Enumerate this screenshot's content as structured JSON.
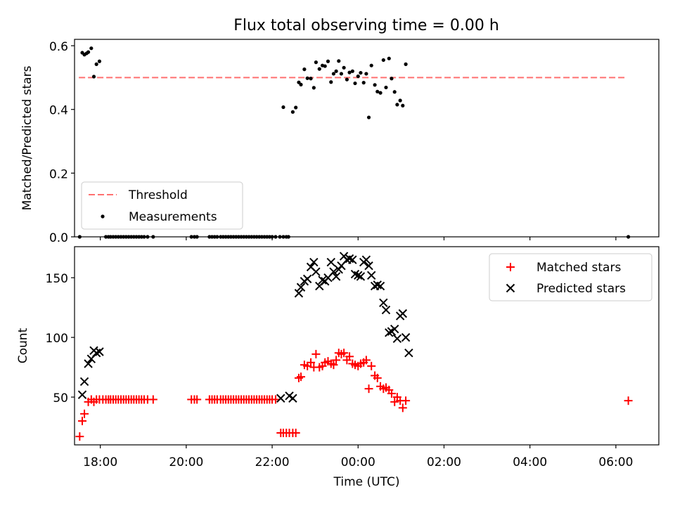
{
  "title": "Flux total observing time = 0.00 h",
  "chart_data": [
    {
      "type": "scatter",
      "ylabel": "Matched/Predicted stars",
      "xlim": [
        -6.6,
        7.0
      ],
      "ylim": [
        0,
        0.62
      ],
      "yticks": [
        "0.0",
        "0.2",
        "0.4",
        "0.6"
      ],
      "grid": false,
      "legend_position": "lower-left",
      "threshold": {
        "name": "Threshold",
        "value": 0.5,
        "x": [
          -6.5,
          6.2
        ],
        "color": "#ff7070",
        "style": "dashed"
      },
      "series": [
        {
          "name": "Measurements",
          "color": "#000000",
          "points": [
            [
              -6.48,
              0.0
            ],
            [
              -6.42,
              0.578
            ],
            [
              -6.37,
              0.572
            ],
            [
              -6.32,
              0.576
            ],
            [
              -6.28,
              0.58
            ],
            [
              -6.21,
              0.592
            ],
            [
              -6.15,
              0.503
            ],
            [
              -6.09,
              0.542
            ],
            [
              -6.02,
              0.551
            ],
            [
              -5.87,
              0.0
            ],
            [
              -5.81,
              0.0
            ],
            [
              -5.76,
              0.0
            ],
            [
              -5.7,
              0.0
            ],
            [
              -5.64,
              0.0
            ],
            [
              -5.58,
              0.0
            ],
            [
              -5.52,
              0.0
            ],
            [
              -5.46,
              0.0
            ],
            [
              -5.4,
              0.0
            ],
            [
              -5.34,
              0.0
            ],
            [
              -5.28,
              0.0
            ],
            [
              -5.22,
              0.0
            ],
            [
              -5.16,
              0.0
            ],
            [
              -5.1,
              0.0
            ],
            [
              -5.04,
              0.0
            ],
            [
              -4.98,
              0.0
            ],
            [
              -4.9,
              0.0
            ],
            [
              -4.77,
              0.0
            ],
            [
              -3.88,
              0.0
            ],
            [
              -3.81,
              0.0
            ],
            [
              -3.75,
              0.0
            ],
            [
              -3.46,
              0.0
            ],
            [
              -3.4,
              0.0
            ],
            [
              -3.34,
              0.0
            ],
            [
              -3.28,
              0.0
            ],
            [
              -3.2,
              0.0
            ],
            [
              -3.14,
              0.0
            ],
            [
              -3.08,
              0.0
            ],
            [
              -3.02,
              0.0
            ],
            [
              -2.96,
              0.0
            ],
            [
              -2.9,
              0.0
            ],
            [
              -2.84,
              0.0
            ],
            [
              -2.78,
              0.0
            ],
            [
              -2.72,
              0.0
            ],
            [
              -2.66,
              0.0
            ],
            [
              -2.6,
              0.0
            ],
            [
              -2.54,
              0.0
            ],
            [
              -2.48,
              0.0
            ],
            [
              -2.42,
              0.0
            ],
            [
              -2.36,
              0.0
            ],
            [
              -2.3,
              0.0
            ],
            [
              -2.24,
              0.0
            ],
            [
              -2.18,
              0.0
            ],
            [
              -2.12,
              0.0
            ],
            [
              -2.06,
              0.0
            ],
            [
              -2.0,
              0.0
            ],
            [
              -1.92,
              0.0
            ],
            [
              -1.82,
              0.0
            ],
            [
              -1.74,
              0.0
            ],
            [
              -1.67,
              0.0
            ],
            [
              -1.62,
              0.0
            ],
            [
              -1.74,
              0.407
            ],
            [
              -1.52,
              0.392
            ],
            [
              -1.45,
              0.406
            ],
            [
              -1.38,
              0.485
            ],
            [
              -1.33,
              0.478
            ],
            [
              -1.25,
              0.526
            ],
            [
              -1.18,
              0.498
            ],
            [
              -1.1,
              0.497
            ],
            [
              -1.03,
              0.468
            ],
            [
              -0.98,
              0.548
            ],
            [
              -0.9,
              0.527
            ],
            [
              -0.83,
              0.538
            ],
            [
              -0.77,
              0.536
            ],
            [
              -0.7,
              0.551
            ],
            [
              -0.63,
              0.486
            ],
            [
              -0.57,
              0.512
            ],
            [
              -0.51,
              0.52
            ],
            [
              -0.45,
              0.552
            ],
            [
              -0.39,
              0.512
            ],
            [
              -0.33,
              0.531
            ],
            [
              -0.26,
              0.494
            ],
            [
              -0.2,
              0.516
            ],
            [
              -0.13,
              0.52
            ],
            [
              -0.07,
              0.482
            ],
            [
              0.0,
              0.504
            ],
            [
              0.06,
              0.515
            ],
            [
              0.13,
              0.484
            ],
            [
              0.19,
              0.512
            ],
            [
              0.25,
              0.375
            ],
            [
              0.31,
              0.538
            ],
            [
              0.39,
              0.477
            ],
            [
              0.45,
              0.456
            ],
            [
              0.52,
              0.452
            ],
            [
              0.59,
              0.555
            ],
            [
              0.65,
              0.469
            ],
            [
              0.72,
              0.56
            ],
            [
              0.78,
              0.497
            ],
            [
              0.85,
              0.455
            ],
            [
              0.91,
              0.415
            ],
            [
              0.98,
              0.428
            ],
            [
              1.04,
              0.412
            ],
            [
              1.11,
              0.542
            ],
            [
              6.29,
              0.0
            ]
          ]
        }
      ]
    },
    {
      "type": "scatter",
      "xlabel": "Time (UTC)",
      "ylabel": "Count",
      "xlim": [
        -6.6,
        7.0
      ],
      "ylim": [
        10,
        176
      ],
      "xticks": [
        "18:00",
        "20:00",
        "22:00",
        "00:00",
        "02:00",
        "04:00",
        "06:00"
      ],
      "yticks": [
        "50",
        "100",
        "150"
      ],
      "grid": false,
      "legend_position": "upper-right",
      "series": [
        {
          "name": "Matched stars",
          "color": "#ff0000",
          "marker": "plus",
          "points": [
            [
              -6.48,
              17
            ],
            [
              -6.42,
              30
            ],
            [
              -6.37,
              36
            ],
            [
              -6.28,
              46
            ],
            [
              -6.21,
              48
            ],
            [
              -6.15,
              46
            ],
            [
              -6.09,
              48
            ],
            [
              -6.02,
              48
            ],
            [
              -5.94,
              48
            ],
            [
              -5.87,
              48
            ],
            [
              -5.81,
              48
            ],
            [
              -5.76,
              48
            ],
            [
              -5.7,
              48
            ],
            [
              -5.64,
              48
            ],
            [
              -5.58,
              48
            ],
            [
              -5.52,
              48
            ],
            [
              -5.46,
              48
            ],
            [
              -5.4,
              48
            ],
            [
              -5.34,
              48
            ],
            [
              -5.28,
              48
            ],
            [
              -5.22,
              48
            ],
            [
              -5.16,
              48
            ],
            [
              -5.1,
              48
            ],
            [
              -5.04,
              48
            ],
            [
              -4.98,
              48
            ],
            [
              -4.9,
              48
            ],
            [
              -4.77,
              48
            ],
            [
              -3.88,
              48
            ],
            [
              -3.81,
              48
            ],
            [
              -3.75,
              48
            ],
            [
              -3.46,
              48
            ],
            [
              -3.4,
              48
            ],
            [
              -3.34,
              48
            ],
            [
              -3.28,
              48
            ],
            [
              -3.2,
              48
            ],
            [
              -3.14,
              48
            ],
            [
              -3.08,
              48
            ],
            [
              -3.02,
              48
            ],
            [
              -2.96,
              48
            ],
            [
              -2.9,
              48
            ],
            [
              -2.84,
              48
            ],
            [
              -2.78,
              48
            ],
            [
              -2.72,
              48
            ],
            [
              -2.66,
              48
            ],
            [
              -2.6,
              48
            ],
            [
              -2.54,
              48
            ],
            [
              -2.48,
              48
            ],
            [
              -2.42,
              48
            ],
            [
              -2.36,
              48
            ],
            [
              -2.3,
              48
            ],
            [
              -2.24,
              48
            ],
            [
              -2.18,
              48
            ],
            [
              -2.12,
              48
            ],
            [
              -2.06,
              48
            ],
            [
              -2.0,
              48
            ],
            [
              -1.92,
              48
            ],
            [
              -1.8,
              20
            ],
            [
              -1.74,
              20
            ],
            [
              -1.67,
              20
            ],
            [
              -1.6,
              20
            ],
            [
              -1.52,
              20
            ],
            [
              -1.45,
              20
            ],
            [
              -1.38,
              66
            ],
            [
              -1.33,
              67
            ],
            [
              -1.25,
              77
            ],
            [
              -1.18,
              76
            ],
            [
              -1.1,
              79
            ],
            [
              -1.03,
              75
            ],
            [
              -0.98,
              86
            ],
            [
              -0.9,
              75
            ],
            [
              -0.83,
              76
            ],
            [
              -0.77,
              79
            ],
            [
              -0.7,
              80
            ],
            [
              -0.63,
              78
            ],
            [
              -0.57,
              77
            ],
            [
              -0.51,
              81
            ],
            [
              -0.45,
              87
            ],
            [
              -0.39,
              86
            ],
            [
              -0.33,
              87
            ],
            [
              -0.26,
              81
            ],
            [
              -0.2,
              84
            ],
            [
              -0.13,
              78
            ],
            [
              -0.07,
              77
            ],
            [
              0.0,
              76
            ],
            [
              0.06,
              78
            ],
            [
              0.13,
              79
            ],
            [
              0.19,
              81
            ],
            [
              0.25,
              57
            ],
            [
              0.31,
              76
            ],
            [
              0.39,
              68
            ],
            [
              0.45,
              66
            ],
            [
              0.52,
              59
            ],
            [
              0.59,
              57
            ],
            [
              0.65,
              58
            ],
            [
              0.72,
              56
            ],
            [
              0.78,
              53
            ],
            [
              0.85,
              46
            ],
            [
              0.91,
              50
            ],
            [
              0.98,
              47
            ],
            [
              1.04,
              41
            ],
            [
              1.11,
              47
            ],
            [
              6.29,
              47
            ]
          ]
        },
        {
          "name": "Predicted stars",
          "color": "#000000",
          "marker": "x",
          "points": [
            [
              -6.42,
              52
            ],
            [
              -6.37,
              63
            ],
            [
              -6.28,
              78
            ],
            [
              -6.21,
              82
            ],
            [
              -6.15,
              89
            ],
            [
              -6.09,
              87
            ],
            [
              -6.02,
              88
            ],
            [
              -1.8,
              49
            ],
            [
              -1.6,
              51
            ],
            [
              -1.52,
              49
            ],
            [
              -1.38,
              137
            ],
            [
              -1.33,
              142
            ],
            [
              -1.25,
              147
            ],
            [
              -1.18,
              149
            ],
            [
              -1.1,
              159
            ],
            [
              -1.03,
              163
            ],
            [
              -0.98,
              155
            ],
            [
              -0.9,
              143
            ],
            [
              -0.83,
              148
            ],
            [
              -0.77,
              147
            ],
            [
              -0.7,
              150
            ],
            [
              -0.63,
              163
            ],
            [
              -0.57,
              155
            ],
            [
              -0.51,
              151
            ],
            [
              -0.45,
              157
            ],
            [
              -0.39,
              160
            ],
            [
              -0.33,
              168
            ],
            [
              -0.26,
              165
            ],
            [
              -0.2,
              166
            ],
            [
              -0.13,
              165
            ],
            [
              -0.07,
              153
            ],
            [
              0.0,
              152
            ],
            [
              0.06,
              151
            ],
            [
              0.13,
              163
            ],
            [
              0.19,
              165
            ],
            [
              0.25,
              160
            ],
            [
              0.31,
              152
            ],
            [
              0.39,
              143
            ],
            [
              0.45,
              144
            ],
            [
              0.52,
              143
            ],
            [
              0.59,
              129
            ],
            [
              0.65,
              123
            ],
            [
              0.72,
              104
            ],
            [
              0.78,
              105
            ],
            [
              0.85,
              107
            ],
            [
              0.91,
              99
            ],
            [
              0.98,
              118
            ],
            [
              1.04,
              120
            ],
            [
              1.11,
              100
            ],
            [
              1.18,
              87
            ]
          ]
        }
      ]
    }
  ]
}
